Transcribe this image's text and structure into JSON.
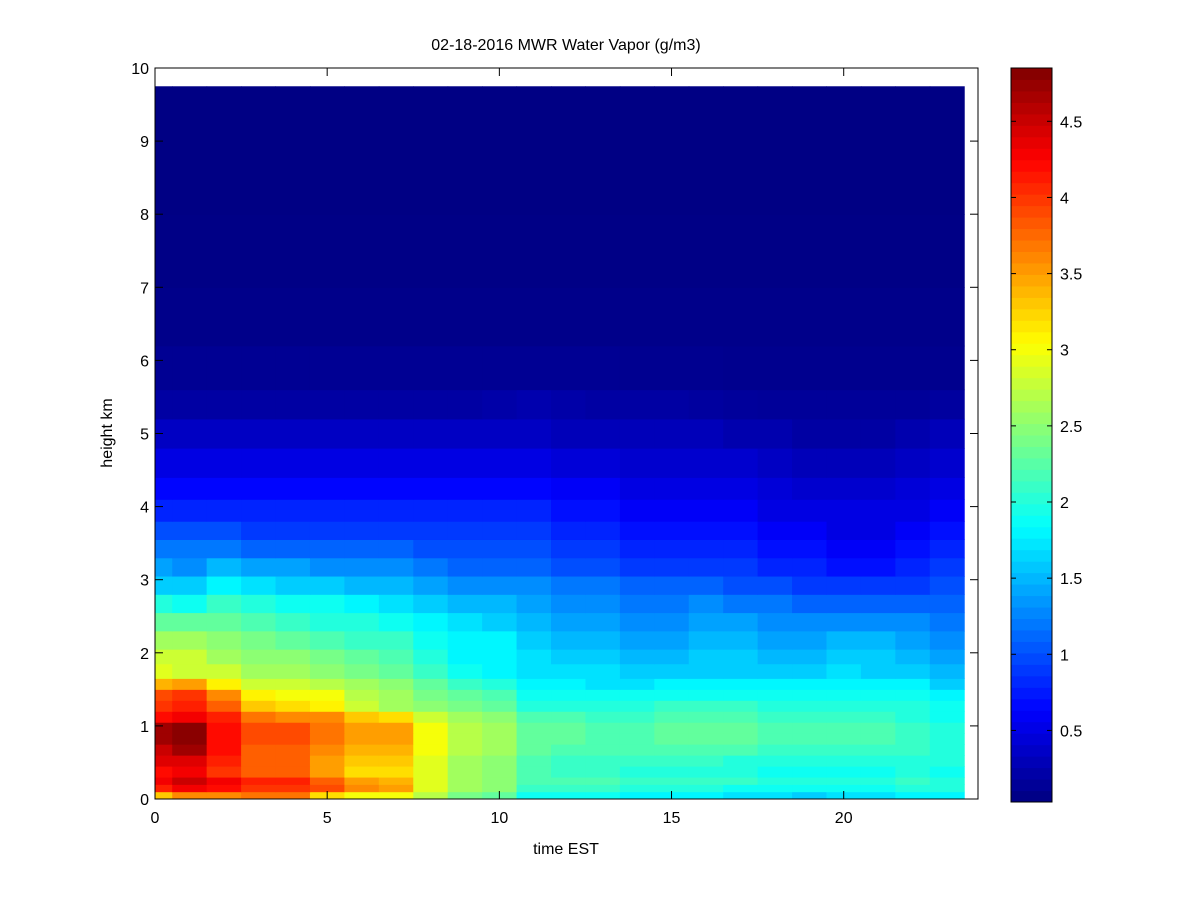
{
  "chart_data": {
    "type": "heatmap",
    "title": "02-18-2016 MWR Water Vapor (g/m3)",
    "xlabel": "time EST",
    "ylabel": "height km",
    "xlim": [
      0,
      23.9
    ],
    "ylim": [
      0,
      10
    ],
    "xticks": [
      0,
      5,
      10,
      15,
      20
    ],
    "yticks": [
      0,
      1,
      2,
      3,
      4,
      5,
      6,
      7,
      8,
      9,
      10
    ],
    "colormap": "jet",
    "clim": [
      0.03,
      4.85
    ],
    "colorbar_ticks": [
      0.5,
      1,
      1.5,
      2,
      2.5,
      3,
      3.5,
      4,
      4.5
    ],
    "x": [
      0,
      1,
      2,
      3,
      4,
      5,
      6,
      7,
      8,
      9,
      10,
      11,
      12,
      13,
      14,
      15,
      16,
      17,
      18,
      19,
      20,
      21,
      22,
      23
    ],
    "height_edges": [
      0,
      0.1,
      0.2,
      0.3,
      0.45,
      0.6,
      0.75,
      0.9,
      1.05,
      1.2,
      1.35,
      1.5,
      1.65,
      1.85,
      2.05,
      2.3,
      2.55,
      2.8,
      3.05,
      3.3,
      3.55,
      3.8,
      4.1,
      4.4,
      4.8,
      5.2,
      5.6,
      6.2,
      7,
      8,
      9.75
    ],
    "values": [
      [
        3.3,
        3.6,
        3.6,
        3.7,
        3.7,
        3.2,
        3.0,
        3.0,
        2.7,
        2.4,
        2.3,
        1.9,
        1.9,
        1.9,
        1.8,
        1.8,
        1.8,
        1.7,
        1.7,
        1.6,
        1.7,
        1.7,
        1.8,
        1.8
      ],
      [
        4.1,
        4.3,
        4.2,
        4.0,
        4.0,
        3.9,
        3.6,
        3.5,
        2.9,
        2.6,
        2.5,
        2.1,
        2.1,
        2.1,
        2.0,
        2.0,
        2.0,
        1.9,
        1.9,
        1.9,
        1.9,
        1.9,
        2.0,
        2.0
      ],
      [
        4.3,
        4.5,
        4.3,
        4.1,
        4.1,
        3.8,
        3.5,
        3.4,
        2.9,
        2.6,
        2.5,
        2.2,
        2.2,
        2.2,
        2.1,
        2.1,
        2.1,
        2.1,
        2.0,
        2.0,
        2.0,
        2.0,
        2.1,
        2.0
      ],
      [
        4.2,
        4.3,
        4.0,
        3.8,
        3.8,
        3.5,
        3.2,
        3.2,
        2.9,
        2.6,
        2.5,
        2.2,
        2.1,
        2.1,
        2.0,
        2.0,
        2.0,
        2.0,
        1.9,
        1.9,
        1.9,
        1.9,
        2.0,
        1.9
      ],
      [
        4.4,
        4.4,
        4.1,
        3.8,
        3.8,
        3.5,
        3.3,
        3.3,
        2.9,
        2.6,
        2.5,
        2.2,
        2.1,
        2.1,
        2.1,
        2.1,
        2.1,
        2.0,
        2.0,
        2.0,
        2.0,
        2.0,
        2.0,
        2.0
      ],
      [
        4.5,
        4.7,
        4.2,
        3.8,
        3.8,
        3.6,
        3.4,
        3.4,
        3.0,
        2.7,
        2.6,
        2.3,
        2.2,
        2.2,
        2.2,
        2.2,
        2.2,
        2.2,
        2.1,
        2.1,
        2.1,
        2.1,
        2.1,
        2.0
      ],
      [
        4.7,
        4.8,
        4.2,
        3.9,
        3.9,
        3.7,
        3.5,
        3.5,
        3.0,
        2.7,
        2.6,
        2.3,
        2.3,
        2.2,
        2.2,
        2.3,
        2.3,
        2.3,
        2.2,
        2.2,
        2.2,
        2.2,
        2.1,
        2.0
      ],
      [
        4.7,
        4.8,
        4.2,
        3.9,
        3.9,
        3.7,
        3.5,
        3.5,
        3.0,
        2.7,
        2.6,
        2.3,
        2.3,
        2.2,
        2.2,
        2.3,
        2.3,
        2.3,
        2.2,
        2.2,
        2.2,
        2.2,
        2.1,
        2.0
      ],
      [
        4.2,
        4.3,
        4.1,
        3.7,
        3.6,
        3.6,
        3.3,
        3.2,
        2.8,
        2.6,
        2.5,
        2.2,
        2.2,
        2.1,
        2.1,
        2.2,
        2.2,
        2.2,
        2.1,
        2.1,
        2.1,
        2.1,
        2.0,
        1.9
      ],
      [
        4.0,
        4.1,
        3.8,
        3.3,
        3.2,
        3.1,
        2.8,
        2.6,
        2.5,
        2.4,
        2.3,
        2.0,
        2.0,
        2.0,
        2.0,
        2.1,
        2.1,
        2.1,
        2.0,
        2.0,
        2.0,
        2.0,
        2.0,
        1.9
      ],
      [
        3.9,
        4.0,
        3.6,
        3.1,
        3.0,
        3.0,
        2.7,
        2.6,
        2.4,
        2.3,
        2.2,
        1.9,
        1.9,
        1.9,
        1.9,
        1.9,
        1.9,
        1.9,
        1.9,
        1.9,
        1.9,
        1.9,
        1.9,
        1.8
      ],
      [
        3.4,
        3.5,
        3.1,
        2.8,
        2.8,
        2.7,
        2.6,
        2.5,
        2.3,
        2.1,
        2.0,
        1.8,
        1.8,
        1.7,
        1.7,
        1.8,
        1.8,
        1.8,
        1.8,
        1.8,
        1.8,
        1.8,
        1.8,
        1.6
      ],
      [
        2.9,
        2.8,
        2.8,
        2.6,
        2.6,
        2.5,
        2.4,
        2.3,
        2.1,
        1.9,
        1.8,
        1.7,
        1.7,
        1.7,
        1.6,
        1.6,
        1.6,
        1.6,
        1.6,
        1.6,
        1.7,
        1.6,
        1.6,
        1.5
      ],
      [
        2.8,
        2.8,
        2.6,
        2.5,
        2.5,
        2.4,
        2.3,
        2.2,
        2.0,
        1.8,
        1.8,
        1.7,
        1.6,
        1.6,
        1.5,
        1.5,
        1.6,
        1.6,
        1.5,
        1.5,
        1.6,
        1.6,
        1.5,
        1.4
      ],
      [
        2.6,
        2.6,
        2.5,
        2.4,
        2.3,
        2.2,
        2.1,
        2.1,
        1.9,
        1.8,
        1.8,
        1.6,
        1.5,
        1.5,
        1.4,
        1.4,
        1.5,
        1.5,
        1.4,
        1.4,
        1.5,
        1.5,
        1.4,
        1.3
      ],
      [
        2.3,
        2.3,
        2.3,
        2.2,
        2.1,
        2.0,
        2.0,
        1.9,
        1.8,
        1.7,
        1.6,
        1.5,
        1.4,
        1.4,
        1.3,
        1.3,
        1.4,
        1.4,
        1.3,
        1.3,
        1.3,
        1.3,
        1.3,
        1.2
      ],
      [
        2.0,
        1.9,
        2.1,
        2.0,
        1.9,
        1.9,
        1.8,
        1.7,
        1.6,
        1.5,
        1.5,
        1.4,
        1.3,
        1.3,
        1.2,
        1.2,
        1.3,
        1.2,
        1.2,
        1.1,
        1.1,
        1.1,
        1.1,
        1.1
      ],
      [
        1.6,
        1.6,
        1.8,
        1.7,
        1.6,
        1.6,
        1.5,
        1.5,
        1.4,
        1.3,
        1.3,
        1.3,
        1.2,
        1.2,
        1.1,
        1.1,
        1.1,
        1.0,
        1.0,
        0.9,
        0.9,
        0.9,
        0.9,
        1.0
      ],
      [
        1.4,
        1.3,
        1.5,
        1.4,
        1.4,
        1.3,
        1.3,
        1.3,
        1.2,
        1.1,
        1.1,
        1.1,
        1.0,
        1.0,
        0.9,
        0.9,
        0.9,
        0.9,
        0.8,
        0.8,
        0.7,
        0.7,
        0.8,
        0.9
      ],
      [
        1.2,
        1.2,
        1.2,
        1.1,
        1.1,
        1.1,
        1.1,
        1.1,
        1.0,
        1.0,
        1.0,
        1.0,
        0.9,
        0.9,
        0.8,
        0.8,
        0.8,
        0.8,
        0.7,
        0.7,
        0.6,
        0.6,
        0.7,
        0.8
      ],
      [
        1.0,
        1.0,
        1.0,
        0.9,
        0.9,
        0.9,
        0.9,
        0.9,
        0.9,
        0.9,
        0.9,
        0.9,
        0.8,
        0.8,
        0.7,
        0.7,
        0.7,
        0.7,
        0.6,
        0.6,
        0.5,
        0.5,
        0.6,
        0.7
      ],
      [
        0.8,
        0.8,
        0.8,
        0.8,
        0.8,
        0.8,
        0.8,
        0.8,
        0.8,
        0.8,
        0.8,
        0.8,
        0.7,
        0.7,
        0.6,
        0.6,
        0.6,
        0.6,
        0.5,
        0.5,
        0.5,
        0.5,
        0.5,
        0.6
      ],
      [
        0.65,
        0.65,
        0.65,
        0.65,
        0.65,
        0.65,
        0.65,
        0.65,
        0.65,
        0.65,
        0.65,
        0.65,
        0.6,
        0.6,
        0.5,
        0.5,
        0.5,
        0.5,
        0.45,
        0.4,
        0.4,
        0.4,
        0.45,
        0.5
      ],
      [
        0.5,
        0.5,
        0.5,
        0.5,
        0.5,
        0.5,
        0.5,
        0.5,
        0.5,
        0.5,
        0.5,
        0.5,
        0.45,
        0.45,
        0.4,
        0.4,
        0.4,
        0.4,
        0.35,
        0.3,
        0.3,
        0.3,
        0.35,
        0.4
      ],
      [
        0.35,
        0.35,
        0.35,
        0.35,
        0.35,
        0.35,
        0.35,
        0.35,
        0.35,
        0.35,
        0.35,
        0.35,
        0.3,
        0.3,
        0.3,
        0.3,
        0.3,
        0.25,
        0.25,
        0.2,
        0.2,
        0.2,
        0.25,
        0.3
      ],
      [
        0.2,
        0.2,
        0.2,
        0.2,
        0.2,
        0.2,
        0.2,
        0.2,
        0.2,
        0.2,
        0.22,
        0.25,
        0.22,
        0.2,
        0.2,
        0.2,
        0.18,
        0.16,
        0.15,
        0.15,
        0.15,
        0.15,
        0.15,
        0.18
      ],
      [
        0.12,
        0.12,
        0.12,
        0.12,
        0.12,
        0.12,
        0.12,
        0.12,
        0.12,
        0.12,
        0.12,
        0.12,
        0.12,
        0.12,
        0.11,
        0.11,
        0.11,
        0.1,
        0.1,
        0.1,
        0.1,
        0.1,
        0.1,
        0.1
      ],
      [
        0.08,
        0.08,
        0.08,
        0.08,
        0.08,
        0.08,
        0.08,
        0.08,
        0.08,
        0.08,
        0.08,
        0.08,
        0.08,
        0.08,
        0.08,
        0.08,
        0.08,
        0.08,
        0.08,
        0.08,
        0.08,
        0.08,
        0.08,
        0.08
      ],
      [
        0.06,
        0.06,
        0.06,
        0.06,
        0.06,
        0.06,
        0.06,
        0.06,
        0.06,
        0.06,
        0.06,
        0.06,
        0.06,
        0.06,
        0.06,
        0.06,
        0.06,
        0.06,
        0.06,
        0.06,
        0.06,
        0.06,
        0.06,
        0.06
      ],
      [
        0.05,
        0.05,
        0.05,
        0.05,
        0.05,
        0.05,
        0.05,
        0.05,
        0.05,
        0.05,
        0.05,
        0.05,
        0.05,
        0.05,
        0.05,
        0.05,
        0.05,
        0.05,
        0.05,
        0.05,
        0.05,
        0.05,
        0.05,
        0.05
      ]
    ]
  }
}
